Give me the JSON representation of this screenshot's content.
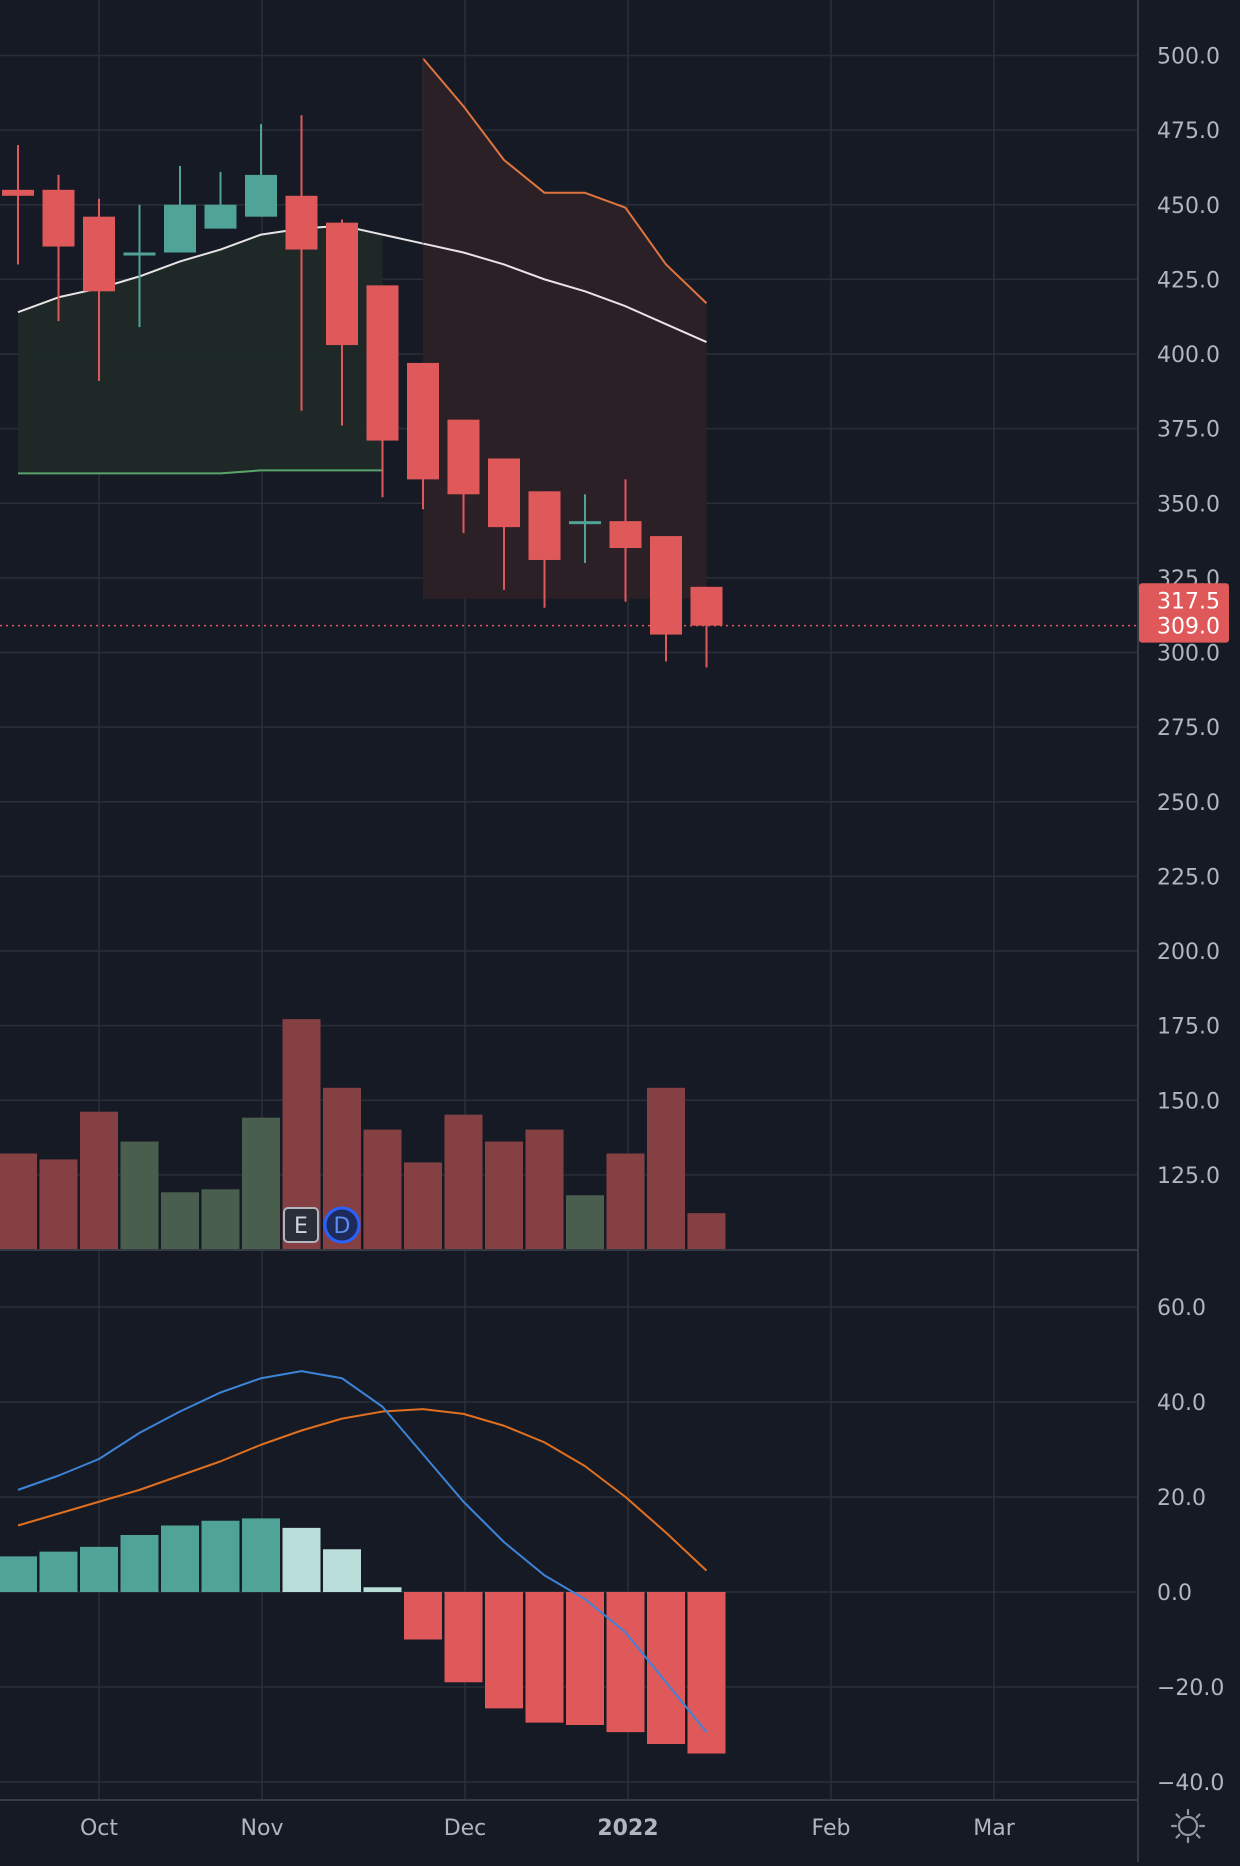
{
  "colors": {
    "background": "#161a25",
    "grid": "#2a2e39",
    "axis_text": "#b2b5be",
    "up": "#4fa397",
    "down": "#e0595a",
    "volume_up": "#4a5e4d",
    "volume_down": "#854043",
    "sma": "#e8e4e6",
    "upper_band": "#e0743f",
    "lower_band": "#5aa36b",
    "macd": "#3c84d8",
    "signal": "#e0701f",
    "hist_up_strong": "#4fa397",
    "hist_up_weak": "#b9ddd8",
    "hist_down": "#e0595a",
    "last_price": "#e0595a"
  },
  "chart_data": [
    {
      "type": "candlestick",
      "panel": "price",
      "x_axis_labels": [
        "Oct",
        "Nov",
        "Dec",
        "2022",
        "Feb",
        "Mar"
      ],
      "y_ticks": [
        "500.0",
        "475.0",
        "450.0",
        "425.0",
        "400.0",
        "375.0",
        "350.0",
        "325.0",
        "300.0",
        "275.0",
        "250.0",
        "225.0",
        "200.0",
        "175.0",
        "150.0",
        "125.0"
      ],
      "ylim": [
        100,
        505
      ],
      "price_labels": [
        "317.5",
        "309.0"
      ],
      "last_price": 309.0,
      "candles": [
        {
          "date": "2021-09-20",
          "open": 455,
          "high": 470,
          "low": 430,
          "close": 453
        },
        {
          "date": "2021-09-27",
          "open": 455,
          "high": 460,
          "low": 411,
          "close": 436
        },
        {
          "date": "2021-10-04",
          "open": 446,
          "high": 452,
          "low": 391,
          "close": 421
        },
        {
          "date": "2021-10-11",
          "open": 433,
          "high": 450,
          "low": 409,
          "close": 434
        },
        {
          "date": "2021-10-18",
          "open": 434,
          "high": 463,
          "low": 434,
          "close": 450
        },
        {
          "date": "2021-10-25",
          "open": 442,
          "high": 461,
          "low": 442,
          "close": 450
        },
        {
          "date": "2021-11-01",
          "open": 446,
          "high": 477,
          "low": 446,
          "close": 460
        },
        {
          "date": "2021-11-08",
          "open": 453,
          "high": 480,
          "low": 381,
          "close": 435
        },
        {
          "date": "2021-11-15",
          "open": 444,
          "high": 445,
          "low": 376,
          "close": 403
        },
        {
          "date": "2021-11-22",
          "open": 423,
          "high": 423,
          "low": 352,
          "close": 371
        },
        {
          "date": "2021-11-29",
          "open": 397,
          "high": 397,
          "low": 348,
          "close": 358
        },
        {
          "date": "2021-12-06",
          "open": 378,
          "high": 378,
          "low": 340,
          "close": 353
        },
        {
          "date": "2021-12-13",
          "open": 365,
          "high": 365,
          "low": 321,
          "close": 342
        },
        {
          "date": "2021-12-20",
          "open": 354,
          "high": 354,
          "low": 315,
          "close": 331
        },
        {
          "date": "2021-12-27",
          "open": 343,
          "high": 353,
          "low": 330,
          "close": 344
        },
        {
          "date": "2022-01-03",
          "open": 344,
          "high": 358,
          "low": 317,
          "close": 335
        },
        {
          "date": "2022-01-10",
          "open": 339,
          "high": 339,
          "low": 297,
          "close": 306
        },
        {
          "date": "2022-01-17",
          "open": 322,
          "high": 322,
          "low": 295,
          "close": 309
        }
      ],
      "volume": [
        {
          "date": "2021-09-20",
          "value": 132,
          "dir": "down"
        },
        {
          "date": "2021-09-27",
          "value": 130,
          "dir": "down"
        },
        {
          "date": "2021-10-04",
          "value": 146,
          "dir": "down"
        },
        {
          "date": "2021-10-11",
          "value": 136,
          "dir": "up"
        },
        {
          "date": "2021-10-18",
          "value": 119,
          "dir": "up"
        },
        {
          "date": "2021-10-25",
          "value": 120,
          "dir": "up"
        },
        {
          "date": "2021-11-01",
          "value": 144,
          "dir": "up"
        },
        {
          "date": "2021-11-08",
          "value": 177,
          "dir": "down"
        },
        {
          "date": "2021-11-15",
          "value": 154,
          "dir": "down"
        },
        {
          "date": "2021-11-22",
          "value": 140,
          "dir": "down"
        },
        {
          "date": "2021-11-29",
          "value": 129,
          "dir": "down"
        },
        {
          "date": "2021-12-06",
          "value": 145,
          "dir": "down"
        },
        {
          "date": "2021-12-13",
          "value": 136,
          "dir": "down"
        },
        {
          "date": "2021-12-20",
          "value": 140,
          "dir": "down"
        },
        {
          "date": "2021-12-27",
          "value": 118,
          "dir": "up"
        },
        {
          "date": "2022-01-03",
          "value": 132,
          "dir": "down"
        },
        {
          "date": "2022-01-10",
          "value": 154,
          "dir": "down"
        },
        {
          "date": "2022-01-17",
          "value": 112,
          "dir": "down"
        }
      ],
      "sma": [
        {
          "date": "2021-09-20",
          "value": 414
        },
        {
          "date": "2021-09-27",
          "value": 419
        },
        {
          "date": "2021-10-04",
          "value": 422
        },
        {
          "date": "2021-10-11",
          "value": 426
        },
        {
          "date": "2021-10-18",
          "value": 431
        },
        {
          "date": "2021-10-25",
          "value": 435
        },
        {
          "date": "2021-11-01",
          "value": 440
        },
        {
          "date": "2021-11-08",
          "value": 442
        },
        {
          "date": "2021-11-15",
          "value": 443
        },
        {
          "date": "2021-11-22",
          "value": 440
        },
        {
          "date": "2021-11-29",
          "value": 437
        },
        {
          "date": "2021-12-06",
          "value": 434
        },
        {
          "date": "2021-12-13",
          "value": 430
        },
        {
          "date": "2021-12-20",
          "value": 425
        },
        {
          "date": "2021-12-27",
          "value": 421
        },
        {
          "date": "2022-01-03",
          "value": 416
        },
        {
          "date": "2022-01-10",
          "value": 410
        },
        {
          "date": "2022-01-17",
          "value": 404
        }
      ],
      "upper_band": [
        {
          "date": "2021-11-29",
          "value": 499
        },
        {
          "date": "2021-12-06",
          "value": 483
        },
        {
          "date": "2021-12-13",
          "value": 465
        },
        {
          "date": "2021-12-20",
          "value": 454
        },
        {
          "date": "2021-12-27",
          "value": 454
        },
        {
          "date": "2022-01-03",
          "value": 449
        },
        {
          "date": "2022-01-10",
          "value": 430
        },
        {
          "date": "2022-01-17",
          "value": 417
        }
      ],
      "lower_band": [
        {
          "date": "2021-09-20",
          "value": 360
        },
        {
          "date": "2021-10-25",
          "value": 360
        },
        {
          "date": "2021-11-01",
          "value": 361
        },
        {
          "date": "2021-11-22",
          "value": 361
        }
      ],
      "events": [
        "E",
        "D"
      ]
    },
    {
      "type": "macd",
      "panel": "oscillator",
      "y_ticks": [
        "60.0",
        "40.0",
        "20.0",
        "0.0",
        "−20.0",
        "−40.0"
      ],
      "ylim": [
        -40,
        60
      ],
      "macd": [
        {
          "date": "2021-09-20",
          "value": 21.5
        },
        {
          "date": "2021-09-27",
          "value": 24.5
        },
        {
          "date": "2021-10-04",
          "value": 28
        },
        {
          "date": "2021-10-11",
          "value": 33.5
        },
        {
          "date": "2021-10-18",
          "value": 38
        },
        {
          "date": "2021-10-25",
          "value": 42
        },
        {
          "date": "2021-11-01",
          "value": 45
        },
        {
          "date": "2021-11-08",
          "value": 46.5
        },
        {
          "date": "2021-11-15",
          "value": 45
        },
        {
          "date": "2021-11-22",
          "value": 39
        },
        {
          "date": "2021-11-29",
          "value": 29
        },
        {
          "date": "2021-12-06",
          "value": 19
        },
        {
          "date": "2021-12-13",
          "value": 10.5
        },
        {
          "date": "2021-12-20",
          "value": 3.5
        },
        {
          "date": "2021-12-27",
          "value": -1.5
        },
        {
          "date": "2022-01-03",
          "value": -8.5
        },
        {
          "date": "2022-01-10",
          "value": -19
        },
        {
          "date": "2022-01-17",
          "value": -29.5
        }
      ],
      "signal": [
        {
          "date": "2021-09-20",
          "value": 14
        },
        {
          "date": "2021-09-27",
          "value": 16.5
        },
        {
          "date": "2021-10-04",
          "value": 19
        },
        {
          "date": "2021-10-11",
          "value": 21.5
        },
        {
          "date": "2021-10-18",
          "value": 24.5
        },
        {
          "date": "2021-10-25",
          "value": 27.5
        },
        {
          "date": "2021-11-01",
          "value": 31
        },
        {
          "date": "2021-11-08",
          "value": 34
        },
        {
          "date": "2021-11-15",
          "value": 36.5
        },
        {
          "date": "2021-11-22",
          "value": 38
        },
        {
          "date": "2021-11-29",
          "value": 38.5
        },
        {
          "date": "2021-12-06",
          "value": 37.5
        },
        {
          "date": "2021-12-13",
          "value": 35
        },
        {
          "date": "2021-12-20",
          "value": 31.5
        },
        {
          "date": "2021-12-27",
          "value": 26.5
        },
        {
          "date": "2022-01-03",
          "value": 20
        },
        {
          "date": "2022-01-10",
          "value": 12.5
        },
        {
          "date": "2022-01-17",
          "value": 4.5
        }
      ],
      "histogram": [
        {
          "date": "2021-09-20",
          "value": 7.5
        },
        {
          "date": "2021-09-27",
          "value": 8.5
        },
        {
          "date": "2021-10-04",
          "value": 9.5
        },
        {
          "date": "2021-10-11",
          "value": 12
        },
        {
          "date": "2021-10-18",
          "value": 14
        },
        {
          "date": "2021-10-25",
          "value": 15
        },
        {
          "date": "2021-11-01",
          "value": 15.5
        },
        {
          "date": "2021-11-08",
          "value": 13.5
        },
        {
          "date": "2021-11-15",
          "value": 9
        },
        {
          "date": "2021-11-22",
          "value": 1
        },
        {
          "date": "2021-11-29",
          "value": -10
        },
        {
          "date": "2021-12-06",
          "value": -19
        },
        {
          "date": "2021-12-13",
          "value": -24.5
        },
        {
          "date": "2021-12-20",
          "value": -27.5
        },
        {
          "date": "2021-12-27",
          "value": -28
        },
        {
          "date": "2022-01-03",
          "value": -29.5
        },
        {
          "date": "2022-01-10",
          "value": -32
        },
        {
          "date": "2022-01-17",
          "value": -34
        }
      ]
    }
  ]
}
